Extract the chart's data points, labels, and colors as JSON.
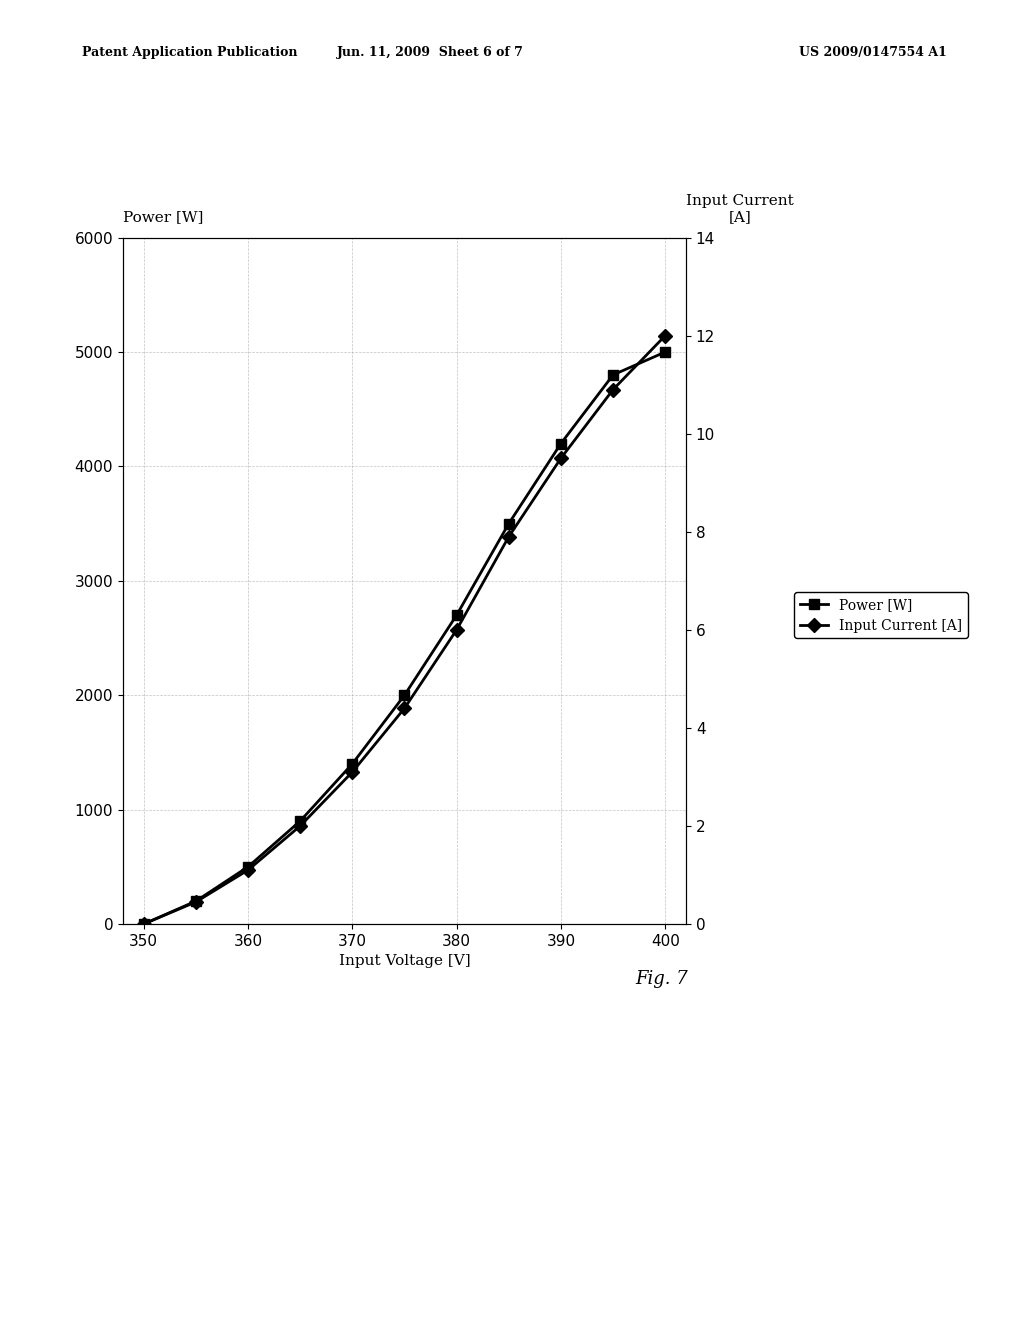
{
  "header_left": "Patent Application Publication",
  "header_mid": "Jun. 11, 2009  Sheet 6 of 7",
  "header_right": "US 2009/0147554 A1",
  "fig_label": "Fig. 7",
  "voltage": [
    350,
    355,
    360,
    365,
    370,
    375,
    380,
    385,
    390,
    395,
    400
  ],
  "power": [
    0,
    200,
    500,
    900,
    1400,
    2000,
    2700,
    3500,
    4200,
    4800,
    5000
  ],
  "current": [
    0,
    0.45,
    1.1,
    2.0,
    3.1,
    4.4,
    6.0,
    7.9,
    9.5,
    10.9,
    12.0
  ],
  "power_color": "#000000",
  "current_color": "#000000",
  "left_ylabel": "Power [W]",
  "right_ylabel": "Input Current\n[A]",
  "xlabel": "Input Voltage [V]",
  "left_yticks": [
    0,
    1000,
    2000,
    3000,
    4000,
    5000,
    6000
  ],
  "right_yticks": [
    0,
    2,
    4,
    6,
    8,
    10,
    12,
    14
  ],
  "xticks": [
    350,
    360,
    370,
    380,
    390,
    400
  ],
  "xlim": [
    348,
    402
  ],
  "left_ylim": [
    0,
    6000
  ],
  "right_ylim": [
    0,
    14
  ],
  "legend_power": "Power [W]",
  "legend_current": "Input Current [A]",
  "background_color": "#ffffff",
  "plot_bg_color": "#ffffff",
  "grid_color": "#aaaaaa",
  "title_fontsize": 11,
  "tick_fontsize": 11,
  "label_fontsize": 11,
  "legend_fontsize": 10
}
